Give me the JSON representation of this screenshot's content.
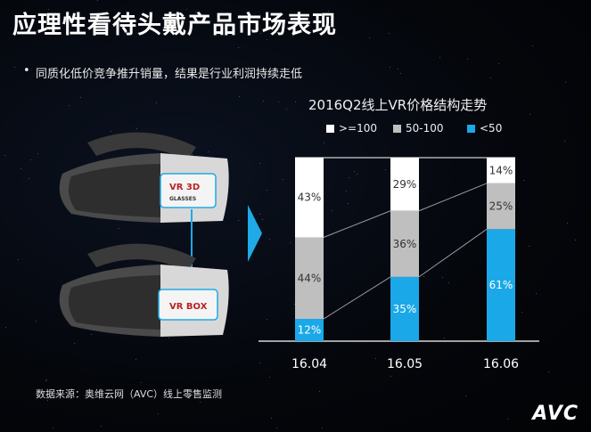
{
  "slide": {
    "title": "应理性看待头戴产品市场表现",
    "bullet": "同质化低价竞争推升销量，结果是行业利润持续走低",
    "source": "数据来源：奥维云网（AVC）线上零售监测",
    "logo": "AVC"
  },
  "products": {
    "top_label_line1": "VR 3D",
    "top_label_line2": "GLASSES",
    "bottom_label": "VR BOX"
  },
  "chart_data": {
    "type": "bar",
    "stacked": true,
    "percent": true,
    "title": "2016Q2线上VR价格结构走势",
    "categories": [
      "16.04",
      "16.05",
      "16.06"
    ],
    "series": [
      {
        "name": "<50",
        "values": [
          12,
          35,
          61
        ],
        "labels": [
          "12%",
          "35%",
          "61%"
        ],
        "color": "#1aa8e8"
      },
      {
        "name": "50-100",
        "values": [
          44,
          36,
          25
        ],
        "labels": [
          "44%",
          "36%",
          "25%"
        ],
        "color": "#bfbfbf"
      },
      {
        "name": ">=100",
        "values": [
          43,
          29,
          14
        ],
        "labels": [
          "43%",
          "29%",
          "14%"
        ],
        "color": "#ffffff"
      }
    ],
    "legend_order": [
      ">=100",
      "50-100",
      "<50"
    ],
    "legend_position": "top",
    "ylim": [
      0,
      100
    ]
  },
  "colors": {
    "accent": "#1aa8e8",
    "mid": "#bfbfbf",
    "high": "#ffffff"
  }
}
